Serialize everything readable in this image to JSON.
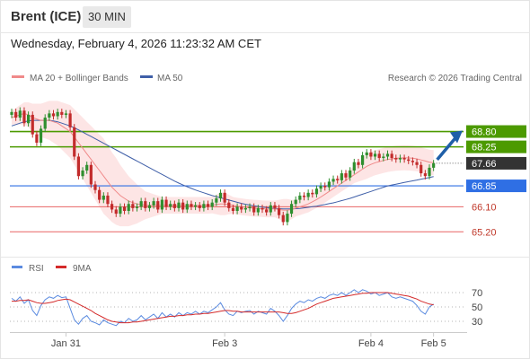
{
  "header": {
    "instrument": "Brent (ICE)",
    "timeframe": "30 MIN",
    "datetime": "Wednesday, February 4, 2026 11:23:32 AM CET"
  },
  "legend": {
    "ma20_label": "MA 20 + Bollinger Bands",
    "ma50_label": "MA 50",
    "credit": "Research © 2026 Trading Central",
    "rsi_label": "RSI",
    "rsi_ma_label": "9MA"
  },
  "colors": {
    "ma20": "#f08a8a",
    "band": "#fde0e0",
    "ma50": "#3f5fa8",
    "resistance": "#4c9a00",
    "pivot": "#2f6fe4",
    "support": "#e86464",
    "candle_up": "#2f8f2f",
    "candle_down": "#c22b2b",
    "arrow": "#1f5fa8",
    "rsi": "#5b8be0",
    "rsi_ma": "#d42a2a",
    "current": "#333333"
  },
  "chart_data": [
    {
      "type": "candlestick",
      "x_ticks": [
        "Jan 31",
        "Feb 3",
        "Feb 4",
        "Feb 5"
      ],
      "ylim": [
        64.5,
        70.3
      ],
      "levels": [
        {
          "value": 68.8,
          "label": "68.80",
          "role": "resistance"
        },
        {
          "value": 68.25,
          "label": "68.25",
          "role": "resistance"
        },
        {
          "value": 67.66,
          "label": "67.66",
          "role": "current"
        },
        {
          "value": 66.85,
          "label": "66.85",
          "role": "pivot"
        },
        {
          "value": 66.1,
          "label": "66.10",
          "role": "support"
        },
        {
          "value": 65.2,
          "label": "65.20",
          "role": "support"
        }
      ],
      "close": [
        69.5,
        69.3,
        69.55,
        69.1,
        69.4,
        68.7,
        68.4,
        68.9,
        69.3,
        69.45,
        69.35,
        69.5,
        69.4,
        69.45,
        68.95,
        67.9,
        67.2,
        67.4,
        67.6,
        66.9,
        66.7,
        66.35,
        66.5,
        66.2,
        66.0,
        65.85,
        66.1,
        65.95,
        66.2,
        66.05,
        66.1,
        66.3,
        66.05,
        66.15,
        66.3,
        66.0,
        66.35,
        66.1,
        66.2,
        66.05,
        66.25,
        66.0,
        66.2,
        66.1,
        66.15,
        66.05,
        66.2,
        66.1,
        66.25,
        66.4,
        66.6,
        66.25,
        66.05,
        65.95,
        66.1,
        66.0,
        66.05,
        66.1,
        65.9,
        66.05,
        66.0,
        65.9,
        66.15,
        66.05,
        65.8,
        65.55,
        65.85,
        66.2,
        66.35,
        66.5,
        66.45,
        66.6,
        66.55,
        66.75,
        66.85,
        66.8,
        67.0,
        67.1,
        67.05,
        67.3,
        67.15,
        67.4,
        67.7,
        67.6,
        67.95,
        68.05,
        67.9,
        68.0,
        67.85,
        67.9,
        68.0,
        67.85,
        67.8,
        67.85,
        67.8,
        67.75,
        67.7,
        67.6,
        67.3,
        67.2,
        67.5,
        67.66
      ],
      "ma20": [
        69.3,
        69.35,
        69.4,
        69.45,
        69.4,
        69.3,
        69.25,
        69.2,
        69.2,
        69.2,
        69.15,
        69.1,
        69.0,
        68.9,
        68.8,
        68.6,
        68.4,
        68.2,
        68.0,
        67.8,
        67.6,
        67.4,
        67.2,
        67.0,
        66.8,
        66.65,
        66.5,
        66.4,
        66.3,
        66.25,
        66.2,
        66.18,
        66.15,
        66.15,
        66.15,
        66.15,
        66.15,
        66.15,
        66.15,
        66.15,
        66.15,
        66.15,
        66.15,
        66.15,
        66.15,
        66.15,
        66.15,
        66.15,
        66.16,
        66.18,
        66.2,
        66.2,
        66.18,
        66.15,
        66.12,
        66.1,
        66.08,
        66.06,
        66.05,
        66.04,
        66.03,
        66.02,
        66.02,
        66.02,
        66.0,
        65.98,
        65.98,
        66.0,
        66.05,
        66.1,
        66.15,
        66.2,
        66.28,
        66.36,
        66.45,
        66.55,
        66.65,
        66.75,
        66.85,
        66.95,
        67.05,
        67.15,
        67.25,
        67.35,
        67.45,
        67.55,
        67.62,
        67.68,
        67.72,
        67.76,
        67.8,
        67.82,
        67.84,
        67.85,
        67.86,
        67.85,
        67.84,
        67.82,
        67.78,
        67.74,
        67.7,
        67.68
      ],
      "ma50": [
        69.0,
        69.05,
        69.1,
        69.15,
        69.18,
        69.2,
        69.2,
        69.2,
        69.2,
        69.2,
        69.18,
        69.15,
        69.1,
        69.05,
        69.0,
        68.93,
        68.86,
        68.78,
        68.7,
        68.62,
        68.54,
        68.46,
        68.38,
        68.3,
        68.22,
        68.14,
        68.06,
        67.98,
        67.9,
        67.82,
        67.74,
        67.66,
        67.58,
        67.5,
        67.42,
        67.34,
        67.26,
        67.18,
        67.1,
        67.02,
        66.95,
        66.88,
        66.82,
        66.76,
        66.7,
        66.65,
        66.6,
        66.55,
        66.5,
        66.46,
        66.42,
        66.38,
        66.34,
        66.3,
        66.26,
        66.22,
        66.19,
        66.16,
        66.13,
        66.11,
        66.09,
        66.07,
        66.05,
        66.04,
        66.03,
        66.02,
        66.02,
        66.02,
        66.03,
        66.04,
        66.06,
        66.08,
        66.1,
        66.12,
        66.15,
        66.18,
        66.21,
        66.24,
        66.28,
        66.32,
        66.36,
        66.4,
        66.45,
        66.5,
        66.55,
        66.6,
        66.65,
        66.7,
        66.75,
        66.8,
        66.85,
        66.88,
        66.91,
        66.94,
        66.97,
        67.0,
        67.03,
        67.06,
        67.09,
        67.12,
        67.15,
        67.18
      ],
      "band_width": [
        0.25,
        0.3,
        0.35,
        0.4,
        0.45,
        0.5,
        0.55,
        0.6,
        0.65,
        0.7,
        0.75,
        0.8,
        0.85,
        0.9,
        0.95,
        1.0,
        1.05,
        1.1,
        1.15,
        1.2,
        1.25,
        1.3,
        1.35,
        1.3,
        1.25,
        1.2,
        1.1,
        1.0,
        0.9,
        0.8,
        0.7,
        0.6,
        0.5,
        0.45,
        0.4,
        0.35,
        0.3,
        0.3,
        0.3,
        0.3,
        0.3,
        0.3,
        0.3,
        0.3,
        0.3,
        0.3,
        0.3,
        0.3,
        0.3,
        0.35,
        0.4,
        0.4,
        0.35,
        0.3,
        0.3,
        0.3,
        0.3,
        0.3,
        0.3,
        0.3,
        0.3,
        0.3,
        0.3,
        0.3,
        0.35,
        0.4,
        0.4,
        0.35,
        0.3,
        0.3,
        0.3,
        0.3,
        0.3,
        0.3,
        0.3,
        0.3,
        0.3,
        0.3,
        0.3,
        0.3,
        0.3,
        0.3,
        0.3,
        0.35,
        0.4,
        0.45,
        0.45,
        0.45,
        0.45,
        0.45,
        0.45,
        0.45,
        0.45,
        0.45,
        0.45,
        0.45,
        0.45,
        0.45,
        0.45,
        0.45,
        0.45,
        0.45
      ]
    },
    {
      "type": "line",
      "title": "RSI",
      "ylim": [
        20,
        80
      ],
      "y_ticks": [
        70,
        50,
        30
      ],
      "series": [
        {
          "name": "RSI",
          "values": [
            62,
            58,
            64,
            55,
            60,
            45,
            38,
            52,
            60,
            64,
            62,
            66,
            63,
            64,
            48,
            32,
            26,
            34,
            38,
            30,
            28,
            25,
            32,
            28,
            26,
            24,
            30,
            28,
            34,
            30,
            32,
            38,
            32,
            36,
            40,
            34,
            42,
            36,
            40,
            36,
            42,
            38,
            42,
            40,
            44,
            40,
            44,
            42,
            46,
            50,
            56,
            46,
            40,
            38,
            44,
            42,
            44,
            45,
            40,
            44,
            42,
            40,
            48,
            44,
            38,
            30,
            38,
            48,
            54,
            58,
            56,
            60,
            58,
            62,
            64,
            62,
            66,
            68,
            66,
            70,
            66,
            70,
            74,
            70,
            74,
            72,
            68,
            70,
            66,
            68,
            70,
            64,
            62,
            64,
            62,
            60,
            58,
            52,
            44,
            40,
            50,
            54
          ]
        },
        {
          "name": "9MA",
          "values": [
            58,
            58,
            59,
            59,
            60,
            58,
            56,
            55,
            55,
            56,
            57,
            59,
            60,
            61,
            60,
            57,
            54,
            51,
            48,
            45,
            41,
            38,
            35,
            32,
            30,
            29,
            28,
            28,
            28,
            29,
            29,
            30,
            31,
            32,
            33,
            34,
            35,
            36,
            37,
            37,
            38,
            38,
            39,
            39,
            40,
            40,
            41,
            41,
            42,
            43,
            44,
            45,
            45,
            44,
            44,
            43,
            43,
            43,
            43,
            43,
            43,
            43,
            43,
            43,
            43,
            42,
            41,
            41,
            42,
            44,
            46,
            48,
            51,
            54,
            56,
            58,
            60,
            62,
            63,
            64,
            65,
            66,
            67,
            68,
            69,
            69,
            70,
            70,
            70,
            70,
            70,
            69,
            68,
            67,
            66,
            65,
            63,
            61,
            58,
            56,
            54,
            53
          ]
        }
      ]
    }
  ]
}
